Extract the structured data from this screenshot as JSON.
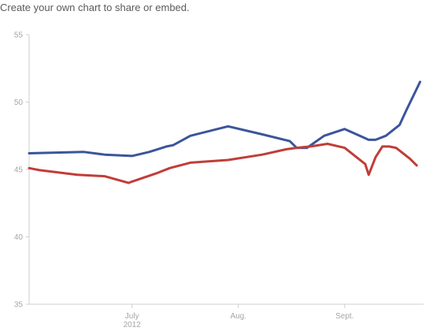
{
  "header": {
    "link_text": "Create your own chart to share or embed."
  },
  "chart_data": {
    "type": "line",
    "title": "",
    "xlabel": "",
    "ylabel": "",
    "ylim": [
      35,
      55
    ],
    "y_ticks": [
      35,
      40,
      45,
      50,
      55
    ],
    "x_ticks": [
      {
        "label": "July",
        "sublabel": "2012",
        "date": "2012-07-01"
      },
      {
        "label": "Aug.",
        "sublabel": "",
        "date": "2012-08-01"
      },
      {
        "label": "Sept.",
        "sublabel": "",
        "date": "2012-09-01"
      }
    ],
    "xlim": [
      "2012-06-01",
      "2012-09-24"
    ],
    "grid": false,
    "legend": "none",
    "series": [
      {
        "color": "#3b559a",
        "points": [
          [
            "2012-06-01",
            46.2
          ],
          [
            "2012-06-09",
            46.25
          ],
          [
            "2012-06-17",
            46.3
          ],
          [
            "2012-06-23",
            46.1
          ],
          [
            "2012-07-01",
            46.0
          ],
          [
            "2012-07-06",
            46.3
          ],
          [
            "2012-07-11",
            46.7
          ],
          [
            "2012-07-13",
            46.8
          ],
          [
            "2012-07-18",
            47.5
          ],
          [
            "2012-07-29",
            48.2
          ],
          [
            "2012-08-08",
            47.6
          ],
          [
            "2012-08-16",
            47.1
          ],
          [
            "2012-08-18",
            46.6
          ],
          [
            "2012-08-21",
            46.6
          ],
          [
            "2012-08-26",
            47.5
          ],
          [
            "2012-09-01",
            48.0
          ],
          [
            "2012-09-08",
            47.2
          ],
          [
            "2012-09-10",
            47.2
          ],
          [
            "2012-09-13",
            47.5
          ],
          [
            "2012-09-17",
            48.3
          ],
          [
            "2012-09-19",
            49.4
          ],
          [
            "2012-09-23",
            51.5
          ]
        ]
      },
      {
        "color": "#c13d38",
        "points": [
          [
            "2012-06-01",
            45.1
          ],
          [
            "2012-06-04",
            44.95
          ],
          [
            "2012-06-15",
            44.6
          ],
          [
            "2012-06-23",
            44.5
          ],
          [
            "2012-06-30",
            44.0
          ],
          [
            "2012-07-01",
            44.1
          ],
          [
            "2012-07-08",
            44.7
          ],
          [
            "2012-07-12",
            45.1
          ],
          [
            "2012-07-18",
            45.5
          ],
          [
            "2012-07-29",
            45.7
          ],
          [
            "2012-08-08",
            46.1
          ],
          [
            "2012-08-15",
            46.5
          ],
          [
            "2012-08-18",
            46.6
          ],
          [
            "2012-08-22",
            46.7
          ],
          [
            "2012-08-27",
            46.9
          ],
          [
            "2012-09-01",
            46.6
          ],
          [
            "2012-09-07",
            45.4
          ],
          [
            "2012-09-08",
            44.6
          ],
          [
            "2012-09-10",
            45.9
          ],
          [
            "2012-09-12",
            46.7
          ],
          [
            "2012-09-14",
            46.7
          ],
          [
            "2012-09-16",
            46.6
          ],
          [
            "2012-09-20",
            45.8
          ],
          [
            "2012-09-22",
            45.3
          ]
        ]
      }
    ]
  }
}
